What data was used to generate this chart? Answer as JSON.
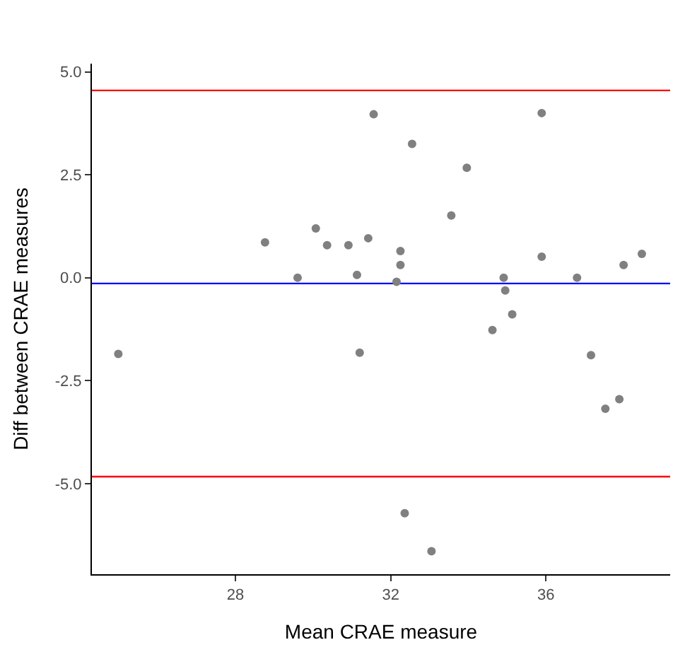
{
  "chart_data": {
    "type": "scatter",
    "xlabel": "Mean CRAE measure",
    "ylabel": "Diff between CRAE measures",
    "x": [
      24.98,
      28.76,
      29.6,
      30.07,
      30.36,
      30.91,
      31.13,
      31.2,
      31.42,
      31.56,
      32.15,
      32.25,
      32.25,
      32.36,
      32.55,
      33.05,
      33.56,
      33.96,
      34.62,
      34.91,
      34.95,
      35.13,
      35.89,
      35.89,
      36.8,
      37.16,
      37.53,
      37.89,
      38.0,
      38.47
    ],
    "series": [
      {
        "color": "#808080",
        "values": [
          -1.85,
          0.86,
          0.0,
          1.2,
          0.79,
          0.79,
          0.07,
          -1.82,
          0.96,
          3.97,
          -0.1,
          0.65,
          0.31,
          -5.72,
          3.25,
          -6.64,
          1.51,
          2.67,
          -1.27,
          0.0,
          -0.31,
          -0.89,
          4.0,
          0.51,
          0.0,
          -1.88,
          -3.18,
          -2.95,
          0.31,
          0.58
        ]
      }
    ],
    "marker": "circle",
    "xlim": [
      24.3,
      39.2
    ],
    "ylim": [
      -7.2,
      5.2
    ],
    "xticks": [
      28,
      32,
      36
    ],
    "yticks": [
      {
        "value": 5.0,
        "label": "5.0"
      },
      {
        "value": 2.5,
        "label": "2.5"
      },
      {
        "value": 0.0,
        "label": "0.0"
      },
      {
        "value": -2.5,
        "label": "-2.5"
      },
      {
        "value": -5.0,
        "label": "-5.0"
      }
    ],
    "ref_lines": [
      {
        "axis": "y",
        "value": 4.55,
        "color": "#ff0000"
      },
      {
        "axis": "y",
        "value": -0.14,
        "color": "#0000ff"
      },
      {
        "axis": "y",
        "value": -4.83,
        "color": "#ff0000"
      }
    ],
    "grid": false,
    "legend": false
  }
}
